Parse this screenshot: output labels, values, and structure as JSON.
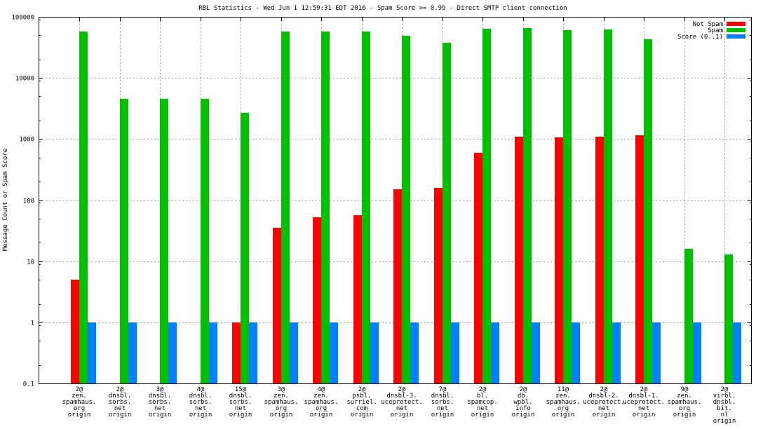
{
  "chart_data": {
    "type": "bar",
    "title": "RBL Statistics - Wed Jun  1 12:59:31 EDT 2016 - Spam Score >= 0.99 - Direct SMTP client connection",
    "xlabel": "",
    "ylabel": "Message Count or Spam Score",
    "yscale": "log",
    "ylim": [
      0.1,
      100000
    ],
    "yticks": [
      0.1,
      1,
      10,
      100,
      1000,
      10000,
      100000
    ],
    "ytick_labels": [
      "0.1",
      "1",
      "10",
      "100",
      "1000",
      "10000",
      "100000"
    ],
    "grid": true,
    "legend_position": "top-right",
    "categories": [
      [
        "2@",
        "zen.",
        "spamhaus.",
        "org",
        "origin"
      ],
      [
        "2@",
        "dnsbl.",
        "sorbs.",
        "net",
        "origin"
      ],
      [
        "3@",
        "dnsbl.",
        "sorbs.",
        "net",
        "origin"
      ],
      [
        "4@",
        "dnsbl.",
        "sorbs.",
        "net",
        "origin"
      ],
      [
        "15@",
        "dnsbl.",
        "sorbs.",
        "net",
        "origin"
      ],
      [
        "3@",
        "zen.",
        "spamhaus.",
        "org",
        "origin"
      ],
      [
        "4@",
        "zen.",
        "spamhaus.",
        "org",
        "origin"
      ],
      [
        "2@",
        "psbl.",
        "surriel.",
        "com",
        "origin"
      ],
      [
        "2@",
        "dnsbl-3.",
        "uceprotect.",
        "net",
        "origin"
      ],
      [
        "7@",
        "dnsbl.",
        "sorbs.",
        "net",
        "origin"
      ],
      [
        "2@",
        "bl.",
        "spamcop.",
        "net",
        "origin"
      ],
      [
        "2@",
        "db.",
        "wpbl.",
        "info",
        "origin"
      ],
      [
        "11@",
        "zen.",
        "spamhaus.",
        "org",
        "origin"
      ],
      [
        "2@",
        "dnsbl-2.",
        "uceprotect.",
        "net",
        "origin"
      ],
      [
        "2@",
        "dnsbl-1.",
        "uceprotect.",
        "net",
        "origin"
      ],
      [
        "9@",
        "zen.",
        "spamhaus.",
        "org",
        "origin"
      ],
      [
        "2@",
        "virbl.",
        "dnsbl.",
        "bit.",
        "nl",
        "origin"
      ]
    ],
    "series": [
      {
        "name": "Not Spam",
        "color": "#ff0000",
        "values": [
          5,
          null,
          null,
          null,
          1,
          35,
          52,
          56,
          150,
          160,
          590,
          1090,
          1060,
          1090,
          1140,
          null,
          null
        ]
      },
      {
        "name": "Spam",
        "color": "#00c000",
        "values": [
          57000,
          4600,
          4600,
          4600,
          2700,
          57000,
          57000,
          58000,
          49000,
          37500,
          63000,
          65000,
          60000,
          62000,
          43000,
          16,
          13
        ]
      },
      {
        "name": "Score (0..1)",
        "color": "#0080ff",
        "values": [
          1,
          1,
          1,
          1,
          1,
          1,
          1,
          1,
          1,
          1,
          1,
          1,
          1,
          1,
          1,
          1,
          1
        ]
      }
    ]
  }
}
